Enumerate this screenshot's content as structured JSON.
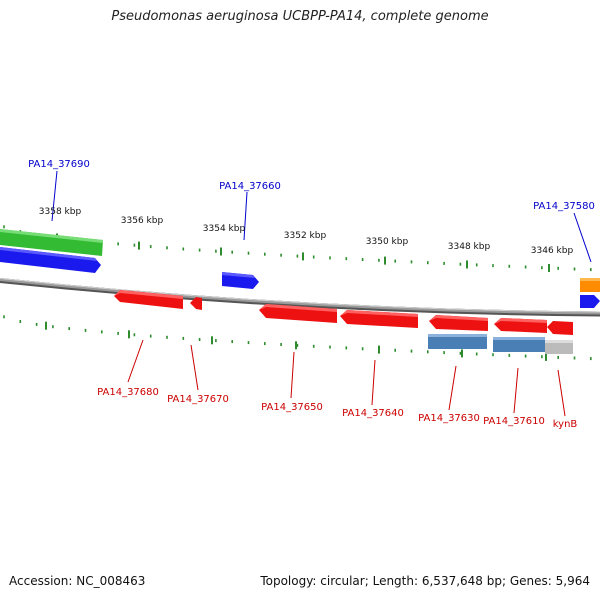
{
  "title": "Pseudomonas aeruginosa UCBPP-PA14, complete genome",
  "footer": {
    "accession_label": "Accession:",
    "accession": "NC_008463",
    "topology_label": "Topology:",
    "topology": "circular",
    "length_label": "Length:",
    "length": "6,537,648 bp",
    "genes_label": "Genes:",
    "genes": "5,964"
  },
  "colors": {
    "backbone": "#8a8a8a",
    "ticks": "#2e8b2e",
    "scale_text": "#111111",
    "forward_label": "#0000cc",
    "reverse_label": "#cc0000",
    "green_feature": "#33bb33",
    "blue_feature": "#1a1aee",
    "red_feature": "#ee1111",
    "steel_feature": "#4a7fb5",
    "orange_feature": "#ff8c00",
    "gray_feature": "#bbbbbb"
  },
  "scale_labels": [
    "3358 kbp",
    "3356 kbp",
    "3354 kbp",
    "3352 kbp",
    "3350 kbp",
    "3348 kbp",
    "3346 kbp"
  ],
  "forward_gene_labels": [
    "PA14_37690",
    "PA14_37660",
    "PA14_37580"
  ],
  "reverse_gene_labels": [
    "PA14_37680",
    "PA14_37670",
    "PA14_37650",
    "PA14_37640",
    "PA14_37630",
    "PA14_37610",
    "kynB"
  ]
}
